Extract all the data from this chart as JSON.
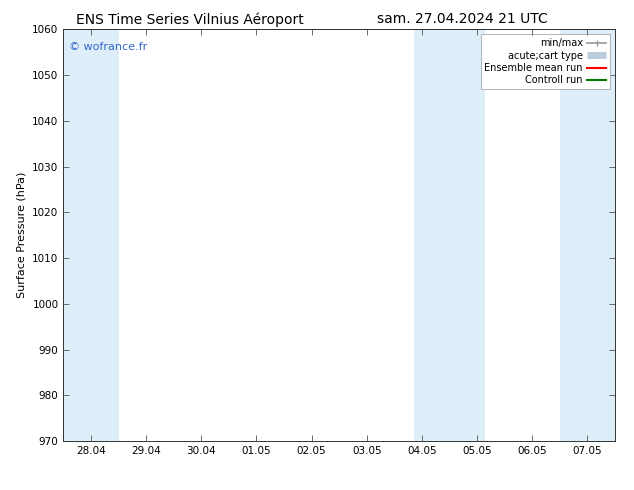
{
  "title_left": "ENS Time Series Vilnius Aéroport",
  "title_right": "sam. 27.04.2024 21 UTC",
  "ylabel": "Surface Pressure (hPa)",
  "ylim": [
    970,
    1060
  ],
  "yticks": [
    970,
    980,
    990,
    1000,
    1010,
    1020,
    1030,
    1040,
    1050,
    1060
  ],
  "xtick_labels": [
    "28.04",
    "29.04",
    "30.04",
    "01.05",
    "02.05",
    "03.05",
    "04.05",
    "05.05",
    "06.05",
    "07.05"
  ],
  "xtick_positions": [
    0,
    1,
    2,
    3,
    4,
    5,
    6,
    7,
    8,
    9
  ],
  "xlim": [
    -0.5,
    9.5
  ],
  "shaded_bands": [
    {
      "x_start": -0.5,
      "x_end": 0.5,
      "color": "#ddeef8"
    },
    {
      "x_start": 5.85,
      "x_end": 6.5,
      "color": "#ddeef8"
    },
    {
      "x_start": 6.5,
      "x_end": 7.15,
      "color": "#ddeef8"
    },
    {
      "x_start": 8.5,
      "x_end": 9.5,
      "color": "#ddeef8"
    }
  ],
  "watermark": "© wofrance.fr",
  "watermark_color": "#3366cc",
  "background_color": "#ffffff",
  "plot_bg_color": "#ffffff",
  "legend_entries": [
    {
      "label": "min/max",
      "color": "#999999",
      "lw": 1.2
    },
    {
      "label": "acute;cart type",
      "color": "#bbccdd",
      "lw": 5
    },
    {
      "label": "Ensemble mean run",
      "color": "#ff0000",
      "lw": 1.5
    },
    {
      "label": "Controll run",
      "color": "#007700",
      "lw": 1.5
    }
  ],
  "title_fontsize": 10,
  "tick_fontsize": 7.5,
  "ylabel_fontsize": 8,
  "watermark_fontsize": 8
}
